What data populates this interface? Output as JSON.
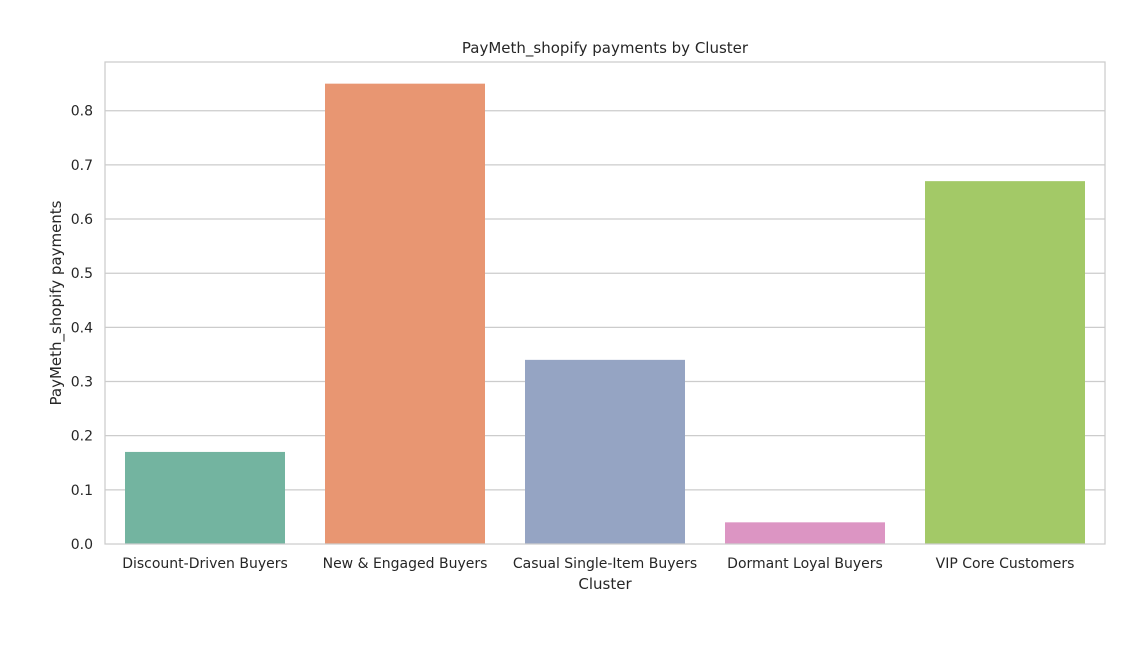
{
  "chart_data": {
    "type": "bar",
    "title": "PayMeth_shopify payments by Cluster",
    "xlabel": "Cluster",
    "ylabel": "PayMeth_shopify payments",
    "categories": [
      "Discount-Driven Buyers",
      "New & Engaged Buyers",
      "Casual Single-Item Buyers",
      "Dormant Loyal Buyers",
      "VIP Core Customers"
    ],
    "values": [
      0.17,
      0.85,
      0.34,
      0.04,
      0.67
    ],
    "colors": [
      "#73b4a0",
      "#e89672",
      "#95a4c3",
      "#dc95c3",
      "#a3c967"
    ],
    "ylim": [
      0,
      0.89
    ],
    "yticks": [
      "0.0",
      "0.1",
      "0.2",
      "0.3",
      "0.4",
      "0.5",
      "0.6",
      "0.7",
      "0.8"
    ],
    "grid": true,
    "legend": "none"
  }
}
